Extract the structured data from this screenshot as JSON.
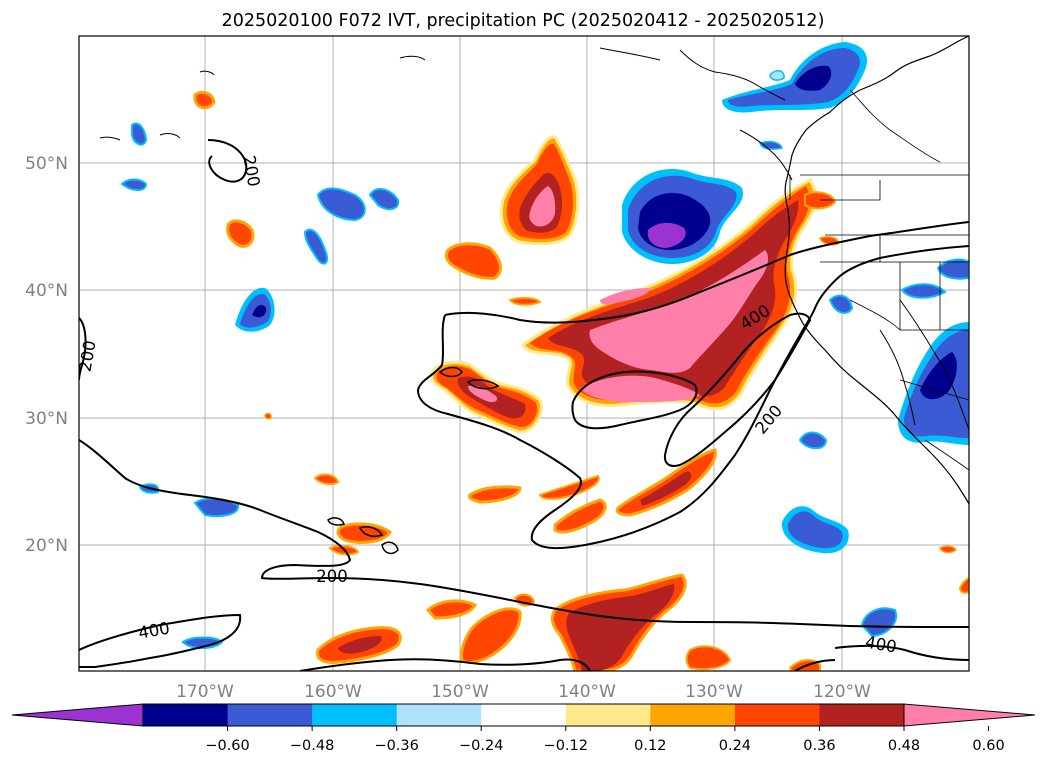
{
  "title": "2025020100 F072 IVT, precipitation PC (2025020412 - 2025020512)",
  "map": {
    "lat_ticks": [
      "50°N",
      "40°N",
      "30°N",
      "20°N"
    ],
    "lon_ticks": [
      "170°W",
      "160°W",
      "150°W",
      "140°W",
      "130°W",
      "120°W"
    ],
    "contour_labels": [
      "200",
      "200",
      "200",
      "400",
      "400",
      "400",
      "200"
    ],
    "grid": true
  },
  "colorbar": {
    "ticks": [
      "−0.60",
      "−0.48",
      "−0.36",
      "−0.24",
      "−0.12",
      "0.12",
      "0.24",
      "0.36",
      "0.48",
      "0.60"
    ],
    "colors": [
      "#9a33d1",
      "#00008f",
      "#3a5bd3",
      "#00bfff",
      "#afe1fa",
      "#ffffff",
      "#ffe98c",
      "#ffa500",
      "#ff4500",
      "#b22222",
      "#ff7fa8"
    ],
    "extend": "both"
  },
  "colors": {
    "neg_light": "#afe1fa",
    "neg_mid": "#00bfff",
    "neg_blue": "#3a5bd3",
    "neg_dark": "#00008f",
    "neg_purple": "#9a33d1",
    "pos_yellow": "#ffe98c",
    "pos_orange": "#ffa500",
    "pos_redorange": "#ff4500",
    "pos_red": "#b22222",
    "pos_pink": "#ff7fa8",
    "ivt_contour": "#000000"
  }
}
